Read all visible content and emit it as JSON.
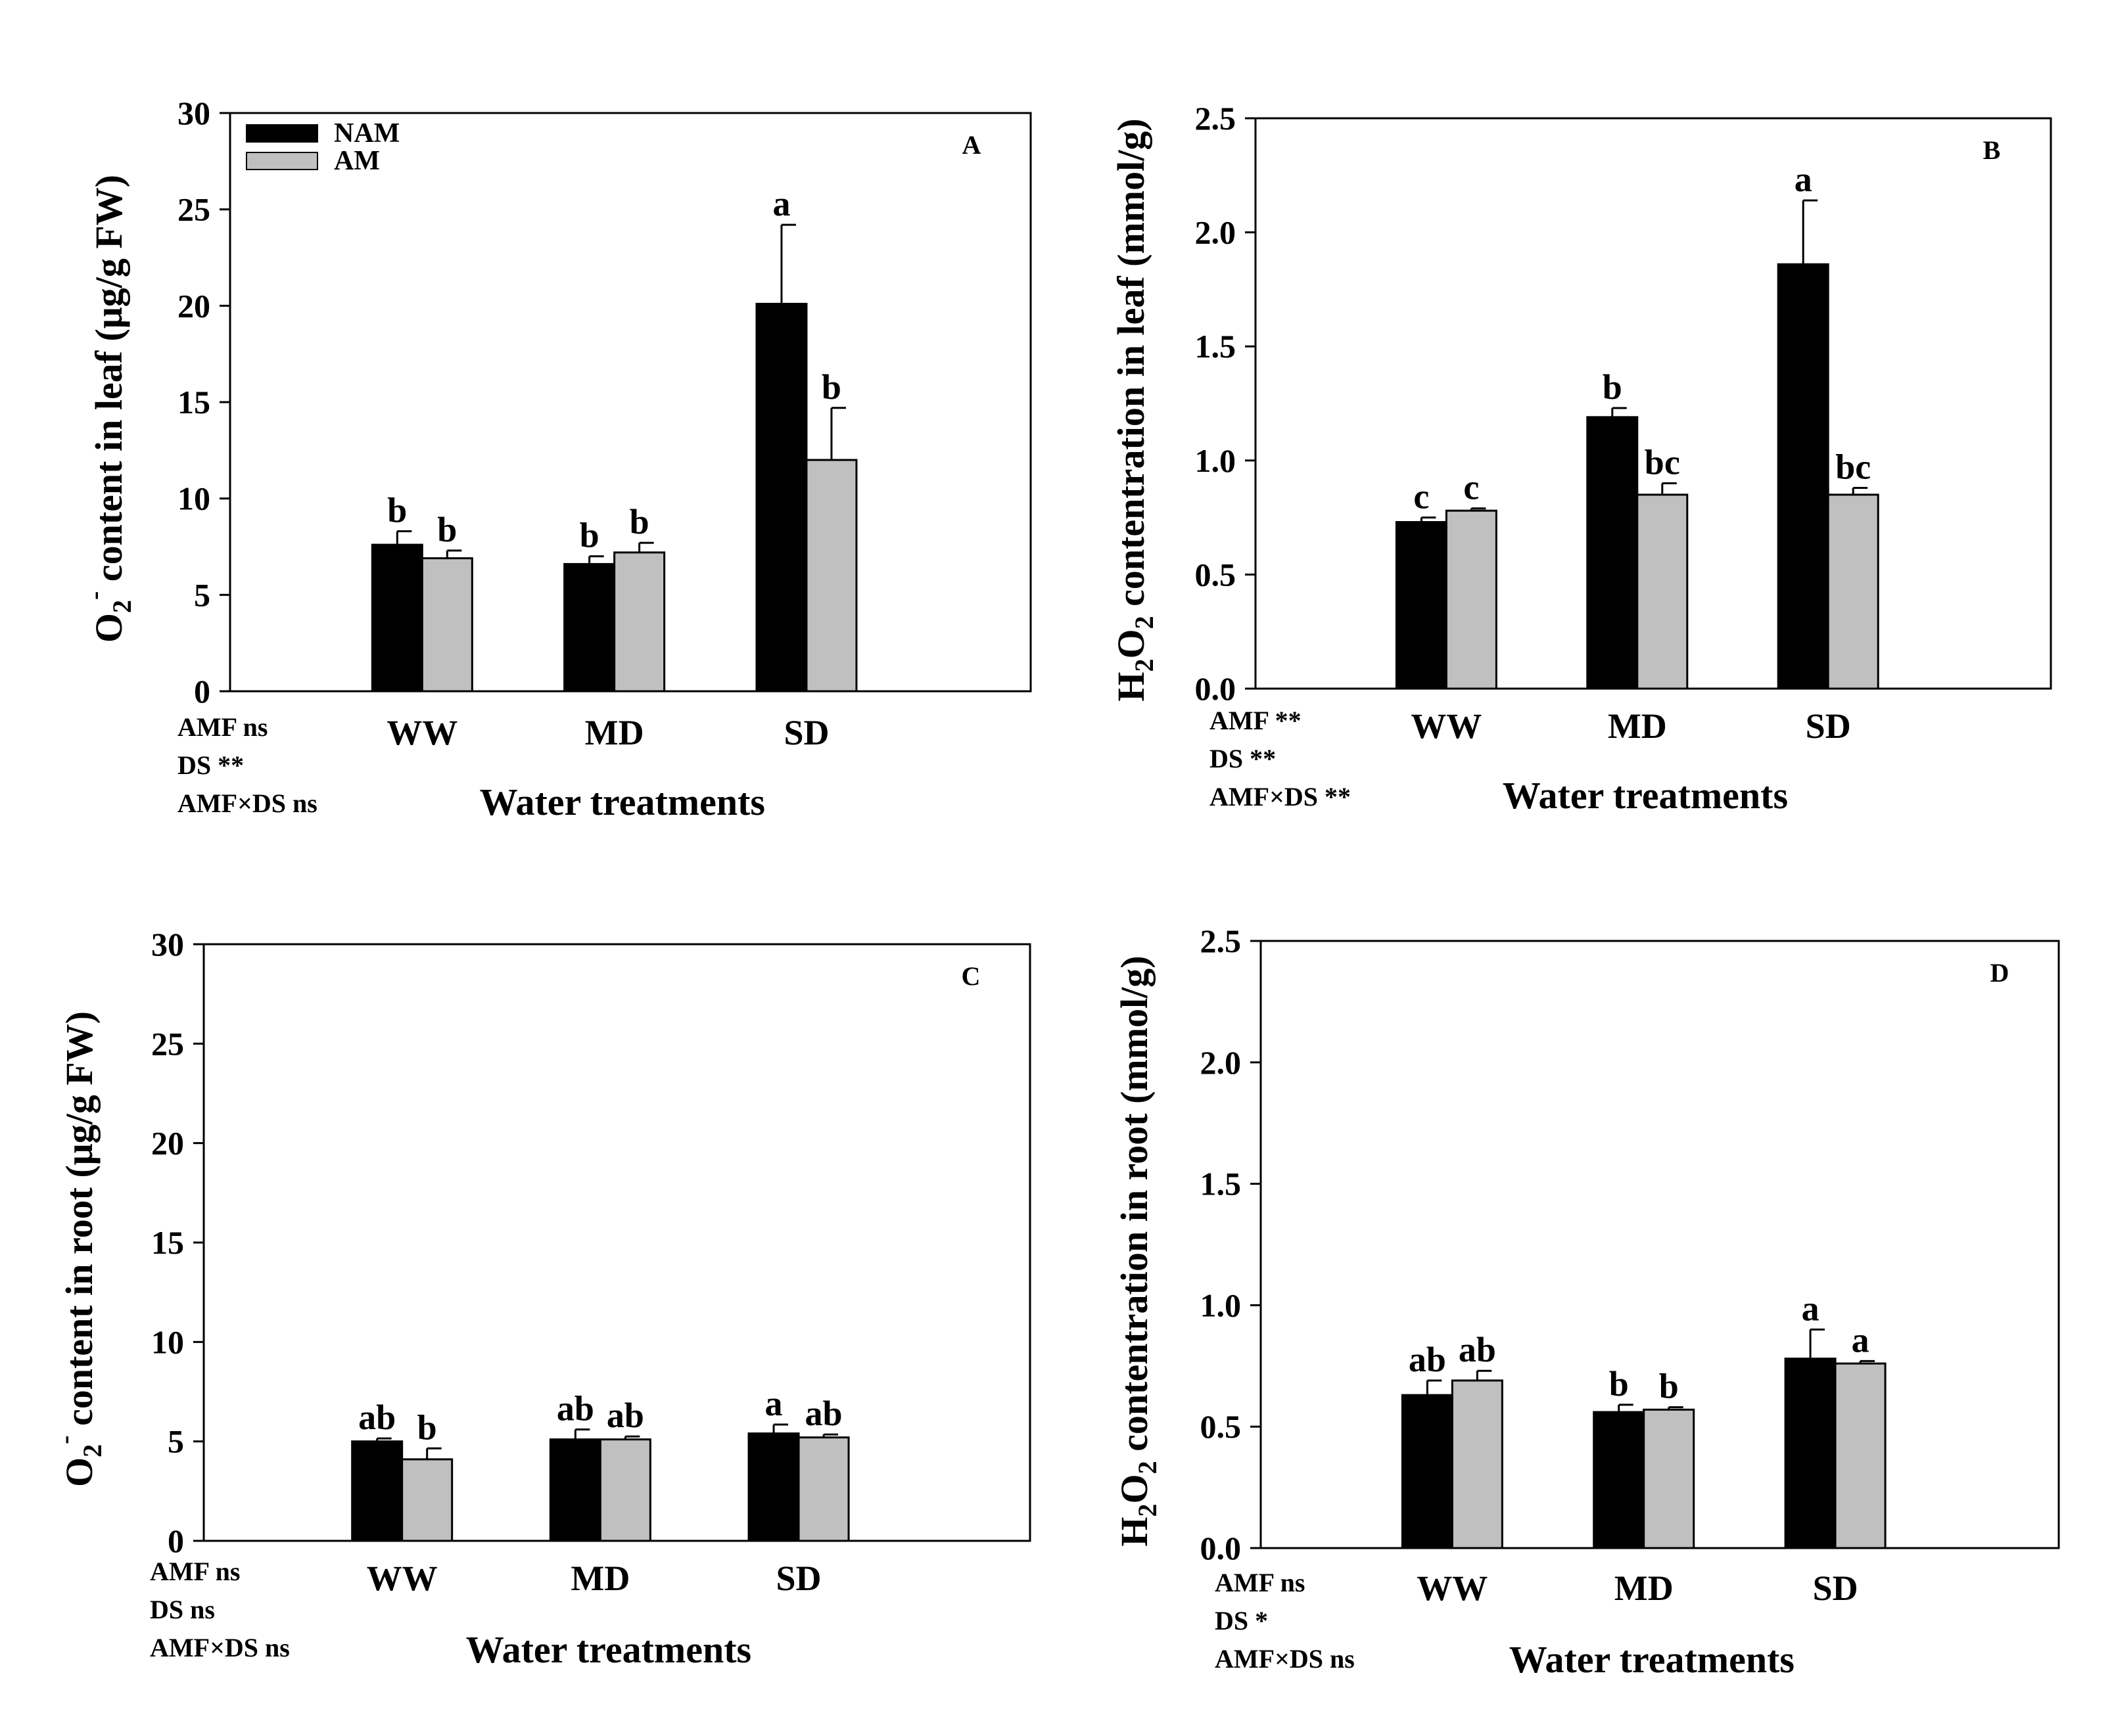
{
  "legend": {
    "nam": "NAM",
    "am": "AM"
  },
  "colors": {
    "nam": "#000000",
    "am": "#c0c0c0",
    "axis": "#000000"
  },
  "chart_data": [
    {
      "id": "A",
      "type": "bar",
      "panel_label": "A",
      "ylabel_pre": "O",
      "ylabel_sub": "2",
      "ylabel_sup": "-",
      "ylabel_post": " content in leaf (μg/g FW)",
      "xlabel": "Water treatments",
      "categories": [
        "WW",
        "MD",
        "SD"
      ],
      "ylim": [
        0,
        30
      ],
      "yticks": [
        "0",
        "5",
        "10",
        "15",
        "20",
        "25",
        "30"
      ],
      "series": [
        {
          "name": "NAM",
          "values": [
            7.6,
            6.6,
            20.1
          ],
          "errors": [
            0.7,
            0.4,
            4.1
          ],
          "letters": [
            "b",
            "b",
            "a"
          ]
        },
        {
          "name": "AM",
          "values": [
            6.9,
            7.2,
            12.0
          ],
          "errors": [
            0.4,
            0.5,
            2.7
          ],
          "letters": [
            "b",
            "b",
            "b"
          ]
        }
      ],
      "stats": [
        "AMF ns",
        "DS **",
        "AMF×DS ns"
      ]
    },
    {
      "id": "B",
      "type": "bar",
      "panel_label": "B",
      "ylabel_pre": "H",
      "ylabel_sub": "2",
      "ylabel_mid": "O",
      "ylabel_sub2": "2",
      "ylabel_post": " contentration in leaf (mmol/g)",
      "xlabel": "Water treatments",
      "categories": [
        "WW",
        "MD",
        "SD"
      ],
      "ylim": [
        0,
        2.5
      ],
      "yticks": [
        "0.0",
        "0.5",
        "1.0",
        "1.5",
        "2.0",
        "2.5"
      ],
      "series": [
        {
          "name": "NAM",
          "values": [
            0.73,
            1.19,
            1.86
          ],
          "errors": [
            0.02,
            0.04,
            0.28
          ],
          "letters": [
            "c",
            "b",
            "a"
          ]
        },
        {
          "name": "AM",
          "values": [
            0.78,
            0.85,
            0.85
          ],
          "errors": [
            0.01,
            0.05,
            0.03
          ],
          "letters": [
            "c",
            "bc",
            "bc"
          ]
        }
      ],
      "stats": [
        "AMF **",
        "DS **",
        "AMF×DS **"
      ]
    },
    {
      "id": "C",
      "type": "bar",
      "panel_label": "C",
      "ylabel_pre": "O",
      "ylabel_sub": "2",
      "ylabel_sup": "-",
      "ylabel_post": " content in root (μg/g FW)",
      "xlabel": "Water treatments",
      "categories": [
        "WW",
        "MD",
        "SD"
      ],
      "ylim": [
        0,
        30
      ],
      "yticks": [
        "0",
        "5",
        "10",
        "15",
        "20",
        "25",
        "30"
      ],
      "series": [
        {
          "name": "NAM",
          "values": [
            5.0,
            5.1,
            5.4
          ],
          "errors": [
            0.15,
            0.5,
            0.45
          ],
          "letters": [
            "ab",
            "ab",
            "a"
          ]
        },
        {
          "name": "AM",
          "values": [
            4.1,
            5.1,
            5.2
          ],
          "errors": [
            0.55,
            0.15,
            0.15
          ],
          "letters": [
            "b",
            "ab",
            "ab"
          ]
        }
      ],
      "stats": [
        "AMF ns",
        "DS ns",
        "AMF×DS ns"
      ]
    },
    {
      "id": "D",
      "type": "bar",
      "panel_label": "D",
      "ylabel_pre": "H",
      "ylabel_sub": "2",
      "ylabel_mid": "O",
      "ylabel_sub2": "2",
      "ylabel_post": " contentration in root (mmol/g)",
      "xlabel": "Water treatments",
      "categories": [
        "WW",
        "MD",
        "SD"
      ],
      "ylim": [
        0,
        2.5
      ],
      "yticks": [
        "0.0",
        "0.5",
        "1.0",
        "1.5",
        "2.0",
        "2.5"
      ],
      "series": [
        {
          "name": "NAM",
          "values": [
            0.63,
            0.56,
            0.78
          ],
          "errors": [
            0.06,
            0.03,
            0.12
          ],
          "letters": [
            "ab",
            "b",
            "a"
          ]
        },
        {
          "name": "AM",
          "values": [
            0.69,
            0.57,
            0.76
          ],
          "errors": [
            0.04,
            0.01,
            0.01
          ],
          "letters": [
            "ab",
            "b",
            "a"
          ]
        }
      ],
      "stats": [
        "AMF ns",
        "DS *",
        "AMF×DS ns"
      ]
    }
  ]
}
